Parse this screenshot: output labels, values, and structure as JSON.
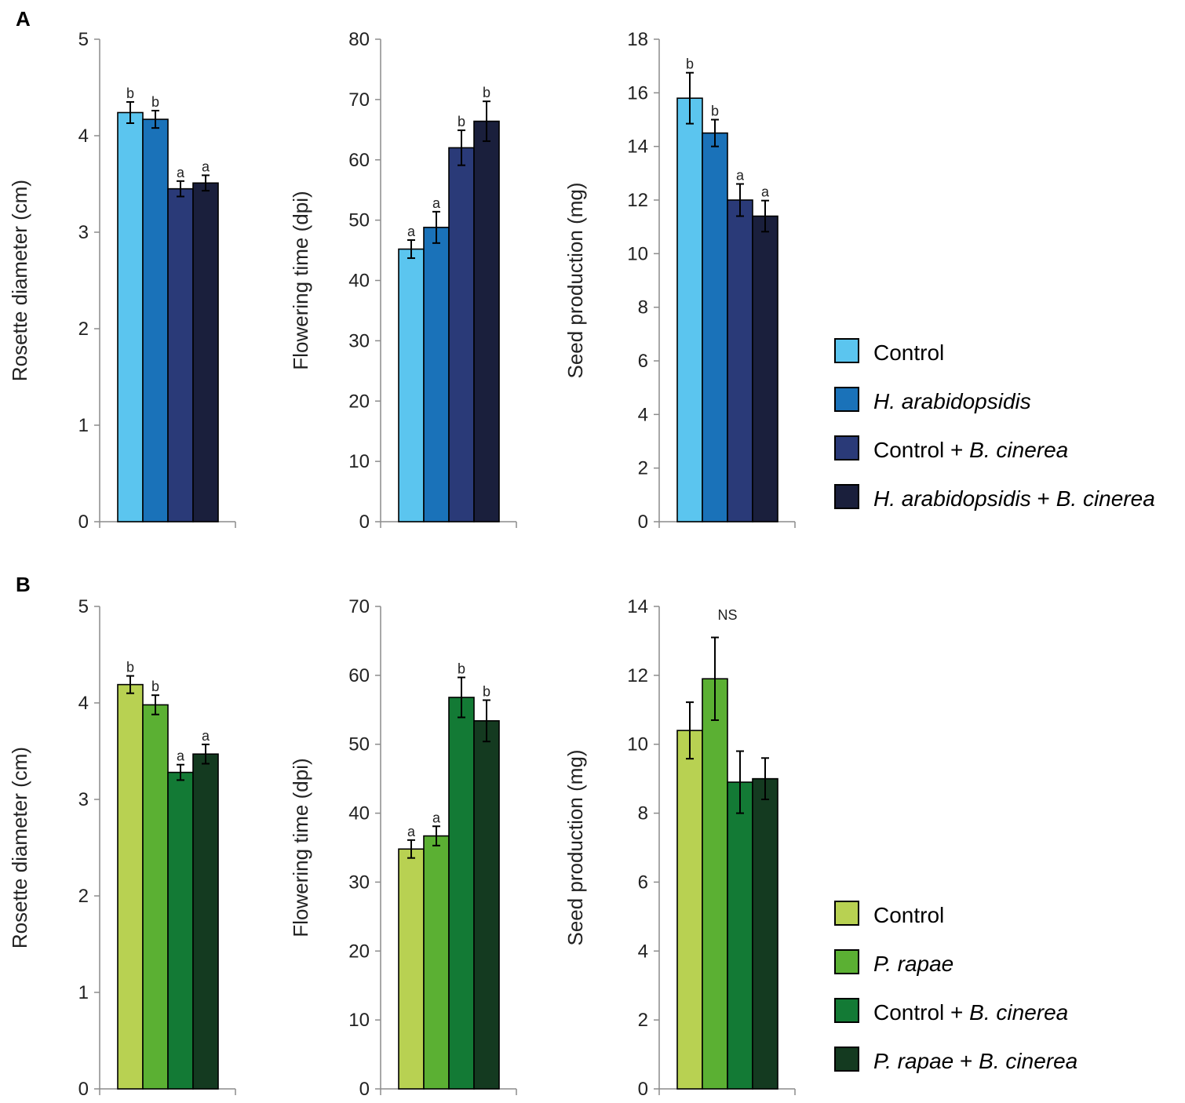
{
  "panel_labels": [
    "A",
    "B"
  ],
  "chart_data": [
    {
      "id": "A1",
      "type": "bar",
      "panel": "A",
      "ylabel": "Rosette diameter (cm)",
      "ylim": [
        0,
        5
      ],
      "yticks": [
        0,
        1,
        2,
        3,
        4,
        5
      ],
      "categories": [
        "Control",
        "H. arabidopsidis",
        "Control + B. cinerea",
        "H. arabidopsidis + B. cinerea"
      ],
      "values": [
        4.24,
        4.17,
        3.45,
        3.51
      ],
      "errors": [
        0.11,
        0.09,
        0.08,
        0.08
      ],
      "labels": [
        "b",
        "b",
        "a",
        "a"
      ],
      "colors": [
        "#5bc5ef",
        "#1a72b9",
        "#2a3a78",
        "#1a1f3c"
      ]
    },
    {
      "id": "A2",
      "type": "bar",
      "panel": "A",
      "ylabel": "Flowering time (dpi)",
      "ylim": [
        0,
        80
      ],
      "yticks": [
        0,
        10,
        20,
        30,
        40,
        50,
        60,
        70,
        80
      ],
      "categories": [
        "Control",
        "H. arabidopsidis",
        "Control + B. cinerea",
        "H. arabidopsidis + B. cinerea"
      ],
      "values": [
        45.2,
        48.8,
        62.0,
        66.4
      ],
      "errors": [
        1.5,
        2.6,
        2.9,
        3.3
      ],
      "labels": [
        "a",
        "a",
        "b",
        "b"
      ],
      "colors": [
        "#5bc5ef",
        "#1a72b9",
        "#2a3a78",
        "#1a1f3c"
      ]
    },
    {
      "id": "A3",
      "type": "bar",
      "panel": "A",
      "ylabel": "Seed production (mg)",
      "ylim": [
        0,
        18
      ],
      "yticks": [
        0,
        2,
        4,
        6,
        8,
        10,
        12,
        14,
        16,
        18
      ],
      "categories": [
        "Control",
        "H. arabidopsidis",
        "Control + B. cinerea",
        "H. arabidopsidis + B. cinerea"
      ],
      "values": [
        15.8,
        14.5,
        12.0,
        11.4
      ],
      "errors": [
        0.95,
        0.5,
        0.6,
        0.58
      ],
      "labels": [
        "b",
        "b",
        "a",
        "a"
      ],
      "colors": [
        "#5bc5ef",
        "#1a72b9",
        "#2a3a78",
        "#1a1f3c"
      ]
    },
    {
      "id": "B1",
      "type": "bar",
      "panel": "B",
      "ylabel": "Rosette diameter (cm)",
      "ylim": [
        0,
        5
      ],
      "yticks": [
        0,
        1,
        2,
        3,
        4,
        5
      ],
      "categories": [
        "Control",
        "P. rapae",
        "Control + B. cinerea",
        "P. rapae + B. cinerea"
      ],
      "values": [
        4.19,
        3.98,
        3.28,
        3.47
      ],
      "errors": [
        0.09,
        0.1,
        0.08,
        0.1
      ],
      "labels": [
        "b",
        "b",
        "a",
        "a"
      ],
      "colors": [
        "#b8d152",
        "#5bb033",
        "#137a35",
        "#143a20"
      ]
    },
    {
      "id": "B2",
      "type": "bar",
      "panel": "B",
      "ylabel": "Flowering time (dpi)",
      "ylim": [
        0,
        70
      ],
      "yticks": [
        0,
        10,
        20,
        30,
        40,
        50,
        60,
        70
      ],
      "categories": [
        "Control",
        "P. rapae",
        "Control + B. cinerea",
        "P. rapae + B. cinerea"
      ],
      "values": [
        34.8,
        36.7,
        56.8,
        53.4
      ],
      "errors": [
        1.3,
        1.4,
        2.9,
        3.0
      ],
      "labels": [
        "a",
        "a",
        "b",
        "b"
      ],
      "colors": [
        "#b8d152",
        "#5bb033",
        "#137a35",
        "#143a20"
      ]
    },
    {
      "id": "B3",
      "type": "bar",
      "panel": "B",
      "ylabel": "Seed production (mg)",
      "ylim": [
        0,
        14
      ],
      "yticks": [
        0,
        2,
        4,
        6,
        8,
        10,
        12,
        14
      ],
      "categories": [
        "Control",
        "P. rapae",
        "Control + B. cinerea",
        "P. rapae + B. cinerea"
      ],
      "values": [
        10.4,
        11.9,
        8.9,
        9.0
      ],
      "errors": [
        0.82,
        1.2,
        0.9,
        0.6
      ],
      "labels": [
        "",
        "",
        "",
        ""
      ],
      "annotation": "NS",
      "colors": [
        "#b8d152",
        "#5bb033",
        "#137a35",
        "#143a20"
      ]
    }
  ],
  "legends": {
    "A": [
      {
        "parts": [
          {
            "text": "Control",
            "italic": false
          }
        ],
        "color": "#5bc5ef"
      },
      {
        "parts": [
          {
            "text": "H. arabidopsidis",
            "italic": true
          }
        ],
        "color": "#1a72b9"
      },
      {
        "parts": [
          {
            "text": "Control + ",
            "italic": false
          },
          {
            "text": "B. cinerea",
            "italic": true
          }
        ],
        "color": "#2a3a78"
      },
      {
        "parts": [
          {
            "text": "H. arabidopsidis",
            "italic": true
          },
          {
            "text": " + ",
            "italic": false
          },
          {
            "text": "B. cinerea",
            "italic": true
          }
        ],
        "color": "#1a1f3c"
      }
    ],
    "B": [
      {
        "parts": [
          {
            "text": "Control",
            "italic": false
          }
        ],
        "color": "#b8d152"
      },
      {
        "parts": [
          {
            "text": "P. rapae",
            "italic": true
          }
        ],
        "color": "#5bb033"
      },
      {
        "parts": [
          {
            "text": "Control + ",
            "italic": false
          },
          {
            "text": "B. cinerea",
            "italic": true
          }
        ],
        "color": "#137a35"
      },
      {
        "parts": [
          {
            "text": "P. rapae",
            "italic": true
          },
          {
            "text": " + ",
            "italic": false
          },
          {
            "text": "B. cinerea",
            "italic": true
          }
        ],
        "color": "#143a20"
      }
    ]
  }
}
